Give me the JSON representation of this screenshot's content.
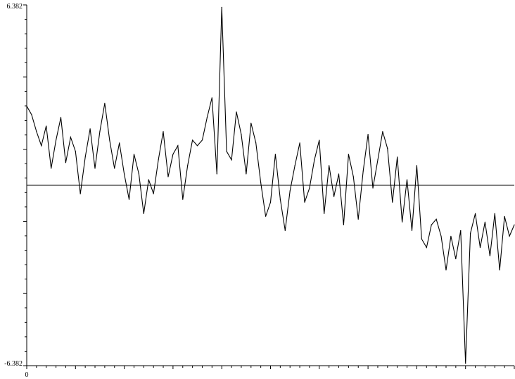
{
  "chart_data": {
    "type": "line",
    "title": "",
    "xlabel": "",
    "ylabel": "",
    "ytick_top_label": "6.382",
    "ytick_bottom_label": "-6.382",
    "xtick_start_label": "0",
    "ylim": [
      -6.382,
      6.382
    ],
    "xlim": [
      0,
      1000
    ],
    "zero_line": true,
    "grid": false,
    "legend": "none",
    "line_color": "#000000",
    "series": [
      {
        "x": [
          0,
          10,
          20,
          30,
          40,
          50,
          60,
          70,
          80,
          90,
          100,
          110,
          120,
          130,
          140,
          150,
          160,
          170,
          180,
          190,
          200,
          210,
          220,
          230,
          240,
          250,
          260,
          270,
          280,
          290,
          300,
          310,
          320,
          330,
          340,
          350,
          360,
          370,
          380,
          390,
          400,
          410,
          420,
          430,
          440,
          450,
          460,
          470,
          480,
          490,
          500,
          510,
          520,
          530,
          540,
          550,
          560,
          570,
          580,
          590,
          600,
          610,
          620,
          630,
          640,
          650,
          660,
          670,
          680,
          690,
          700,
          710,
          720,
          730,
          740,
          750,
          760,
          770,
          780,
          790,
          800,
          810,
          820,
          830,
          840,
          850,
          860,
          870,
          880,
          890,
          900,
          910,
          920,
          930,
          940,
          950,
          960,
          970,
          980,
          990,
          1000
        ],
        "values": [
          2.8,
          2.5,
          1.9,
          1.4,
          2.1,
          0.6,
          1.6,
          2.4,
          0.8,
          1.7,
          1.2,
          -0.3,
          1.0,
          2.0,
          0.6,
          1.9,
          2.9,
          1.6,
          0.6,
          1.5,
          0.4,
          -0.5,
          1.1,
          0.4,
          -1.0,
          0.2,
          -0.3,
          0.9,
          1.9,
          0.3,
          1.1,
          1.4,
          -0.5,
          0.7,
          1.6,
          1.4,
          1.6,
          2.4,
          3.1,
          0.4,
          6.3,
          1.2,
          0.9,
          2.6,
          1.8,
          0.4,
          2.2,
          1.5,
          0.1,
          -1.1,
          -0.6,
          1.1,
          -0.5,
          -1.6,
          -0.2,
          0.7,
          1.5,
          -0.6,
          -0.1,
          0.9,
          1.6,
          -1.0,
          0.7,
          -0.4,
          0.4,
          -1.4,
          1.1,
          0.3,
          -1.2,
          0.5,
          1.8,
          -0.1,
          0.9,
          1.9,
          1.3,
          -0.6,
          1.0,
          -1.3,
          0.2,
          -1.6,
          0.7,
          -1.9,
          -2.2,
          -1.4,
          -1.2,
          -1.8,
          -3.0,
          -1.8,
          -2.6,
          -1.6,
          -6.3,
          -1.7,
          -1.0,
          -2.2,
          -1.3,
          -2.5,
          -1.0,
          -3.0,
          -1.1,
          -1.8,
          -1.4
        ]
      }
    ]
  }
}
